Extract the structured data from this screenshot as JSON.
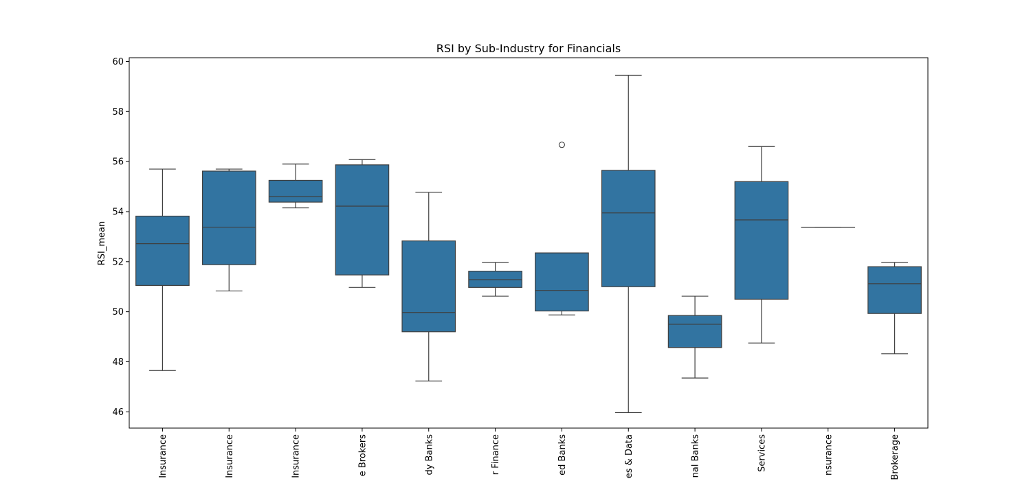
{
  "chart_data": {
    "type": "box",
    "title": "RSI by Sub-Industry for Financials",
    "xlabel": "",
    "ylabel": "RSI_mean",
    "ylim": [
      45.35,
      60.15
    ],
    "yticks": [
      46,
      48,
      50,
      52,
      54,
      56,
      58,
      60
    ],
    "grid": false,
    "box_color": "#3274a1",
    "line_color": "#3f3f3f",
    "categories": [
      "Insurance",
      "Insurance",
      "Insurance",
      "e Brokers",
      "dy Banks",
      "r Finance",
      "ed Banks",
      "es & Data",
      "nal Banks",
      "Services",
      "nsurance",
      "Brokerage"
    ],
    "boxes": [
      {
        "whisker_low": 47.65,
        "q1": 51.05,
        "median": 52.72,
        "q3": 53.82,
        "whisker_high": 55.7,
        "outliers": []
      },
      {
        "whisker_low": 50.83,
        "q1": 51.88,
        "median": 53.38,
        "q3": 55.62,
        "whisker_high": 55.7,
        "outliers": []
      },
      {
        "whisker_low": 54.15,
        "q1": 54.38,
        "median": 54.6,
        "q3": 55.25,
        "whisker_high": 55.9,
        "outliers": []
      },
      {
        "whisker_low": 50.97,
        "q1": 51.47,
        "median": 54.22,
        "q3": 55.87,
        "whisker_high": 56.08,
        "outliers": []
      },
      {
        "whisker_low": 47.23,
        "q1": 49.2,
        "median": 49.97,
        "q3": 52.83,
        "whisker_high": 54.77,
        "outliers": []
      },
      {
        "whisker_low": 50.62,
        "q1": 50.97,
        "median": 51.28,
        "q3": 51.62,
        "whisker_high": 51.97,
        "outliers": []
      },
      {
        "whisker_low": 49.87,
        "q1": 50.03,
        "median": 50.85,
        "q3": 52.35,
        "whisker_high": 52.35,
        "outliers": [
          56.67
        ]
      },
      {
        "whisker_low": 45.97,
        "q1": 51.0,
        "median": 53.95,
        "q3": 55.65,
        "whisker_high": 59.45,
        "outliers": []
      },
      {
        "whisker_low": 47.35,
        "q1": 48.57,
        "median": 49.5,
        "q3": 49.85,
        "whisker_high": 50.62,
        "outliers": []
      },
      {
        "whisker_low": 48.75,
        "q1": 50.5,
        "median": 53.67,
        "q3": 55.2,
        "whisker_high": 56.6,
        "outliers": []
      },
      {
        "whisker_low": 53.37,
        "q1": 53.37,
        "median": 53.37,
        "q3": 53.37,
        "whisker_high": 53.37,
        "outliers": []
      },
      {
        "whisker_low": 48.32,
        "q1": 49.93,
        "median": 51.12,
        "q3": 51.8,
        "whisker_high": 51.97,
        "outliers": []
      }
    ]
  }
}
